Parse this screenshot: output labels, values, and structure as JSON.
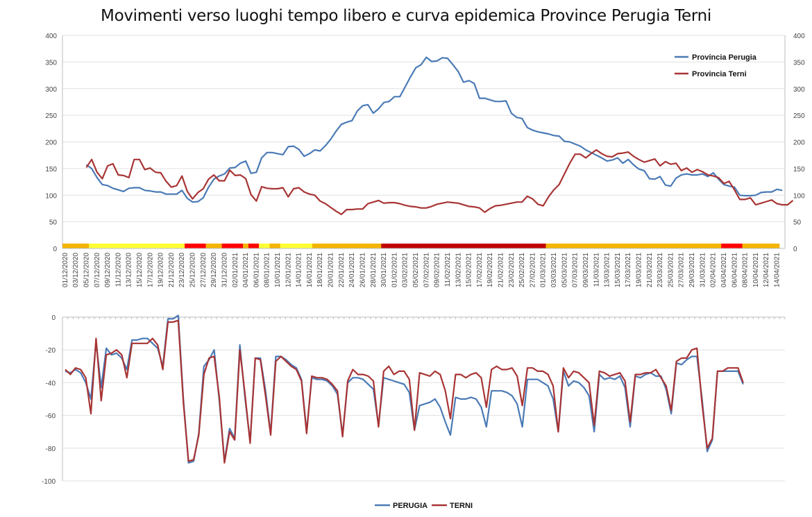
{
  "title": "Movimenti verso luoghi tempo libero e curva epidemica Province Perugia Terni",
  "colors": {
    "perugia": "#4a7ab5",
    "terni": "#a83434",
    "yellow": "#ffff33",
    "orange": "#f4b400",
    "red": "#ff0000",
    "darkred": "#c00000",
    "grid": "#e0e0e0"
  },
  "chart_data": [
    {
      "type": "line",
      "name": "top",
      "ylim": [
        0,
        400
      ],
      "yticks": [
        "0",
        "50",
        "100",
        "150",
        "200",
        "250",
        "300",
        "350",
        "400"
      ],
      "xticks": [
        "01/12/2020",
        "03/12/2020",
        "05/12/2020",
        "07/12/2020",
        "09/12/2020",
        "11/12/2020",
        "13/12/2020",
        "15/12/2020",
        "17/12/2020",
        "19/12/2020",
        "21/12/2020",
        "23/12/2020",
        "25/12/2020",
        "27/12/2020",
        "29/12/2020",
        "31/12/2020",
        "02/01/2021",
        "04/01/2021",
        "06/01/2021",
        "08/01/2021",
        "10/01/2021",
        "12/01/2021",
        "14/01/2021",
        "16/01/2021",
        "18/01/2021",
        "20/01/2021",
        "22/01/2021",
        "24/01/2021",
        "26/01/2021",
        "28/01/2021",
        "30/01/2021",
        "01/02/2021",
        "03/02/2021",
        "05/02/2021",
        "07/02/2021",
        "09/02/2021",
        "11/02/2021",
        "13/02/2021",
        "15/02/2021",
        "17/02/2021",
        "19/02/2021",
        "21/02/2021",
        "23/02/2021",
        "25/02/2021",
        "27/02/2021",
        "01/03/2021",
        "03/03/2021",
        "05/03/2021",
        "07/03/2021",
        "09/03/2021",
        "11/03/2021",
        "13/03/2021",
        "15/03/2021",
        "17/03/2021",
        "19/03/2021",
        "21/03/2021",
        "23/03/2021",
        "25/03/2021",
        "27/03/2021",
        "29/03/2021",
        "31/03/2021",
        "02/04/2021",
        "04/04/2021",
        "06/04/2021",
        "08/04/2021",
        "10/04/2021",
        "12/04/2021",
        "14/04/2021"
      ],
      "legend_position": "top-right",
      "series": [
        {
          "name": "Provincia Perugia",
          "color": "#4a7ab5",
          "start_index": 4,
          "values": [
            157,
            150,
            133,
            120,
            118,
            113,
            110,
            107,
            113,
            114,
            114,
            109,
            108,
            106,
            106,
            102,
            102,
            102,
            109,
            94,
            87,
            88,
            95,
            115,
            130,
            136,
            140,
            151,
            152,
            160,
            164,
            141,
            143,
            170,
            180,
            180,
            178,
            176,
            191,
            192,
            186,
            173,
            178,
            185,
            183,
            193,
            205,
            220,
            233,
            237,
            240,
            258,
            268,
            270,
            254,
            262,
            274,
            276,
            285,
            285,
            303,
            322,
            339,
            345,
            359,
            351,
            352,
            358,
            357,
            345,
            332,
            312,
            315,
            310,
            282,
            282,
            279,
            276,
            276,
            277,
            254,
            246,
            244,
            227,
            222,
            219,
            217,
            215,
            212,
            211,
            201,
            200,
            196,
            192,
            185,
            180,
            175,
            170,
            164,
            166,
            170,
            160,
            167,
            157,
            149,
            146,
            131,
            130,
            135,
            119,
            117,
            132,
            138,
            140,
            138,
            138,
            140,
            135,
            142,
            130,
            120,
            117,
            115,
            100,
            99,
            99,
            100,
            105,
            106,
            106,
            111,
            109
          ]
        },
        {
          "name": "Provincia Terni",
          "color": "#a83434",
          "start_index": 4,
          "values": [
            152,
            167,
            143,
            131,
            155,
            159,
            138,
            137,
            133,
            167,
            167,
            148,
            151,
            143,
            142,
            126,
            115,
            118,
            136,
            107,
            93,
            105,
            112,
            130,
            138,
            127,
            127,
            147,
            137,
            138,
            131,
            101,
            89,
            116,
            113,
            112,
            112,
            114,
            97,
            112,
            114,
            106,
            102,
            100,
            89,
            84,
            77,
            70,
            64,
            73,
            73,
            74,
            74,
            84,
            87,
            90,
            85,
            86,
            86,
            84,
            81,
            79,
            78,
            76,
            76,
            79,
            83,
            85,
            87,
            86,
            85,
            82,
            79,
            78,
            76,
            68,
            75,
            80,
            81,
            83,
            85,
            87,
            87,
            98,
            93,
            83,
            80,
            97,
            110,
            120,
            140,
            160,
            177,
            177,
            170,
            178,
            185,
            178,
            173,
            172,
            178,
            179,
            181,
            173,
            167,
            162,
            165,
            168,
            155,
            163,
            158,
            160,
            146,
            151,
            143,
            148,
            144,
            138,
            136,
            133,
            122,
            126,
            110,
            92,
            92,
            95,
            82,
            85,
            88,
            91,
            84,
            82,
            82,
            90
          ]
        }
      ],
      "color_band": [
        {
          "from": 0,
          "to": 5,
          "color": "orange"
        },
        {
          "from": 5,
          "to": 23,
          "color": "yellow"
        },
        {
          "from": 23,
          "to": 27,
          "color": "red"
        },
        {
          "from": 27,
          "to": 30,
          "color": "orange"
        },
        {
          "from": 30,
          "to": 34,
          "color": "red"
        },
        {
          "from": 34,
          "to": 35,
          "color": "orange"
        },
        {
          "from": 35,
          "to": 37,
          "color": "red"
        },
        {
          "from": 37,
          "to": 39,
          "color": "yellow"
        },
        {
          "from": 39,
          "to": 41,
          "color": "orange"
        },
        {
          "from": 41,
          "to": 47,
          "color": "yellow"
        },
        {
          "from": 47,
          "to": 60,
          "color": "orange"
        },
        {
          "from": 60,
          "to": 91,
          "color": "darkred"
        },
        {
          "from": 91,
          "to": 124,
          "color": "orange"
        },
        {
          "from": 124,
          "to": 128,
          "color": "red"
        },
        {
          "from": 128,
          "to": 135,
          "color": "orange"
        }
      ]
    },
    {
      "type": "line",
      "name": "bottom",
      "ylim": [
        -100,
        0
      ],
      "yticks": [
        "0",
        "-20",
        "-40",
        "-60",
        "-80",
        "-100"
      ],
      "legend_position": "bottom",
      "series": [
        {
          "name": "PERUGIA",
          "color": "#4a7ab5",
          "values": [
            -33,
            -34,
            -32,
            -34,
            -40,
            -50,
            -15,
            -43,
            -19,
            -23,
            -22,
            -25,
            -32,
            -14,
            -14,
            -13,
            -13,
            -16,
            -19,
            -30,
            -1,
            -1,
            1,
            -50,
            -89,
            -88,
            -71,
            -30,
            -26,
            -20,
            -51,
            -88,
            -68,
            -74,
            -17,
            -49,
            -76,
            -25,
            -25,
            -45,
            -71,
            -24,
            -24,
            -26,
            -29,
            -31,
            -38,
            -70,
            -37,
            -38,
            -38,
            -39,
            -42,
            -47,
            -72,
            -40,
            -37,
            -37,
            -38,
            -41,
            -44,
            -66,
            -37,
            -38,
            -39,
            -40,
            -41,
            -46,
            -69,
            -54,
            -53,
            -52,
            -50,
            -55,
            -64,
            -72,
            -49,
            -50,
            -50,
            -49,
            -50,
            -55,
            -67,
            -45,
            -45,
            -45,
            -46,
            -48,
            -53,
            -67,
            -38,
            -38,
            -38,
            -40,
            -42,
            -50,
            -70,
            -33,
            -42,
            -39,
            -40,
            -43,
            -48,
            -70,
            -35,
            -38,
            -37,
            -38,
            -36,
            -43,
            -67,
            -36,
            -37,
            -35,
            -34,
            -36,
            -36,
            -44,
            -59,
            -28,
            -29,
            -26,
            -24,
            -24,
            -50,
            -82,
            -75,
            -33,
            -33,
            -33,
            -33,
            -33,
            -41
          ]
        },
        {
          "name": "TERNI",
          "color": "#a83434",
          "values": [
            -32,
            -35,
            -31,
            -32,
            -37,
            -59,
            -13,
            -51,
            -23,
            -22,
            -20,
            -23,
            -37,
            -16,
            -16,
            -16,
            -16,
            -13,
            -17,
            -32,
            -3,
            -3,
            -2,
            -52,
            -88,
            -87,
            -72,
            -35,
            -25,
            -24,
            -49,
            -89,
            -70,
            -75,
            -20,
            -47,
            -77,
            -25,
            -26,
            -48,
            -72,
            -27,
            -24,
            -27,
            -30,
            -32,
            -39,
            -71,
            -36,
            -37,
            -37,
            -38,
            -41,
            -45,
            -73,
            -39,
            -32,
            -35,
            -35,
            -36,
            -39,
            -67,
            -33,
            -30,
            -35,
            -33,
            -33,
            -38,
            -69,
            -34,
            -35,
            -36,
            -33,
            -35,
            -45,
            -62,
            -35,
            -35,
            -37,
            -35,
            -34,
            -37,
            -55,
            -32,
            -30,
            -32,
            -32,
            -31,
            -36,
            -54,
            -31,
            -31,
            -33,
            -33,
            -35,
            -42,
            -70,
            -31,
            -37,
            -33,
            -34,
            -37,
            -40,
            -66,
            -33,
            -34,
            -36,
            -35,
            -34,
            -39,
            -64,
            -35,
            -35,
            -34,
            -34,
            -32,
            -37,
            -42,
            -57,
            -27,
            -25,
            -25,
            -20,
            -19,
            -53,
            -80,
            -74,
            -33,
            -33,
            -31,
            -31,
            -31,
            -40
          ]
        }
      ]
    }
  ]
}
